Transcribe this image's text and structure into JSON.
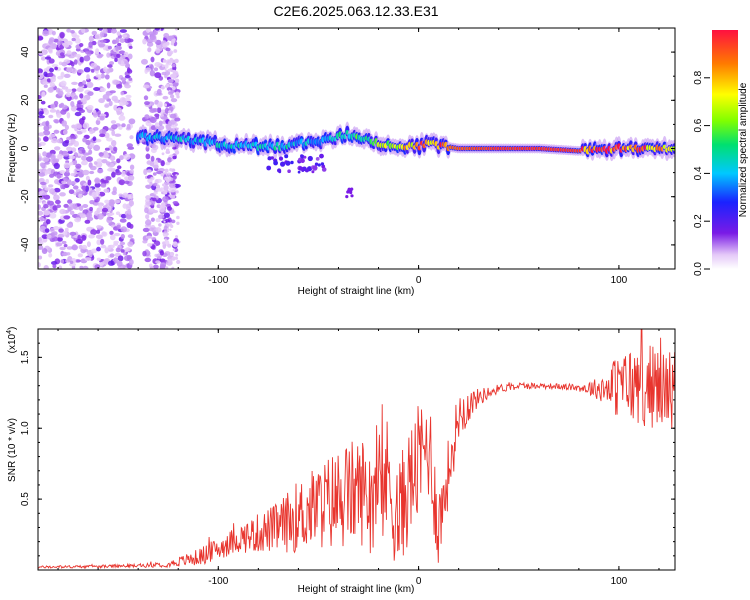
{
  "figure": {
    "title": "C2E6.2025.063.12.33.E31"
  },
  "chart_data": [
    {
      "type": "heatmap",
      "xlabel": "Height of straight line (km)",
      "ylabel": "Frequency (Hz)",
      "xlim": [
        -190,
        128
      ],
      "ylim": [
        -50,
        50
      ],
      "x_ticks": [
        -100,
        0,
        100
      ],
      "y_ticks": [
        -40,
        -20,
        0,
        20,
        40
      ],
      "colorbar": {
        "label": "Normalized spectral amplitude",
        "range": [
          0.0,
          1.0
        ],
        "ticks": [
          "0.0",
          "0.2",
          "0.4",
          "0.6",
          "0.8"
        ],
        "tick_values": [
          0.0,
          0.2,
          0.4,
          0.6,
          0.8
        ]
      },
      "ridge": {
        "x": [
          -140,
          -120,
          -100,
          -80,
          -70,
          -60,
          -50,
          -40,
          -35,
          -30,
          -20,
          -10,
          0,
          5,
          20,
          40,
          60,
          80,
          100,
          128
        ],
        "frequency": [
          5,
          4,
          2,
          1,
          1,
          2,
          3,
          5,
          6,
          5,
          2,
          1,
          1,
          2,
          0,
          0,
          0,
          -1,
          0,
          0
        ],
        "amplitude": [
          0.35,
          0.4,
          0.4,
          0.45,
          0.45,
          0.4,
          0.4,
          0.45,
          0.5,
          0.5,
          0.6,
          0.7,
          0.8,
          0.85,
          0.9,
          0.95,
          0.95,
          0.95,
          0.9,
          0.8
        ]
      },
      "noise_region_x": [
        -190,
        -120
      ]
    },
    {
      "type": "line",
      "xlabel": "Height of straight line (km)",
      "ylabel": "SNR (10 * v/v)",
      "y_multiplier": "(x10",
      "y_multiplier_exp": "4",
      "y_multiplier_close": ")",
      "xlim": [
        -190,
        128
      ],
      "ylim": [
        0,
        17000
      ],
      "x_ticks": [
        -100,
        0,
        100
      ],
      "y_ticks": [
        5000,
        10000,
        15000
      ],
      "y_tick_labels": [
        "0.5",
        "1.0",
        "1.5"
      ],
      "series": [
        {
          "color": "#e8352e",
          "x": [
            -190,
            -160,
            -140,
            -125,
            -110,
            -100,
            -90,
            -80,
            -70,
            -60,
            -50,
            -40,
            -30,
            -20,
            -15,
            -10,
            -5,
            0,
            5,
            10,
            20,
            30,
            40,
            50,
            60,
            70,
            80,
            90,
            100,
            110,
            120,
            128
          ],
          "y": [
            200,
            250,
            300,
            400,
            900,
            1500,
            2200,
            2600,
            3000,
            3800,
            4500,
            5000,
            5600,
            5500,
            6500,
            3500,
            6000,
            7500,
            9000,
            3000,
            11000,
            12200,
            12800,
            13000,
            13000,
            12950,
            12850,
            12800,
            13000,
            13100,
            12900,
            12800
          ],
          "noise": [
            80,
            100,
            120,
            200,
            600,
            800,
            1000,
            1400,
            1800,
            2600,
            3000,
            3800,
            3800,
            4200,
            4600,
            4200,
            4000,
            4200,
            4200,
            3000,
            1800,
            600,
            300,
            250,
            200,
            200,
            250,
            800,
            2400,
            3000,
            3000,
            2800
          ]
        }
      ]
    }
  ]
}
